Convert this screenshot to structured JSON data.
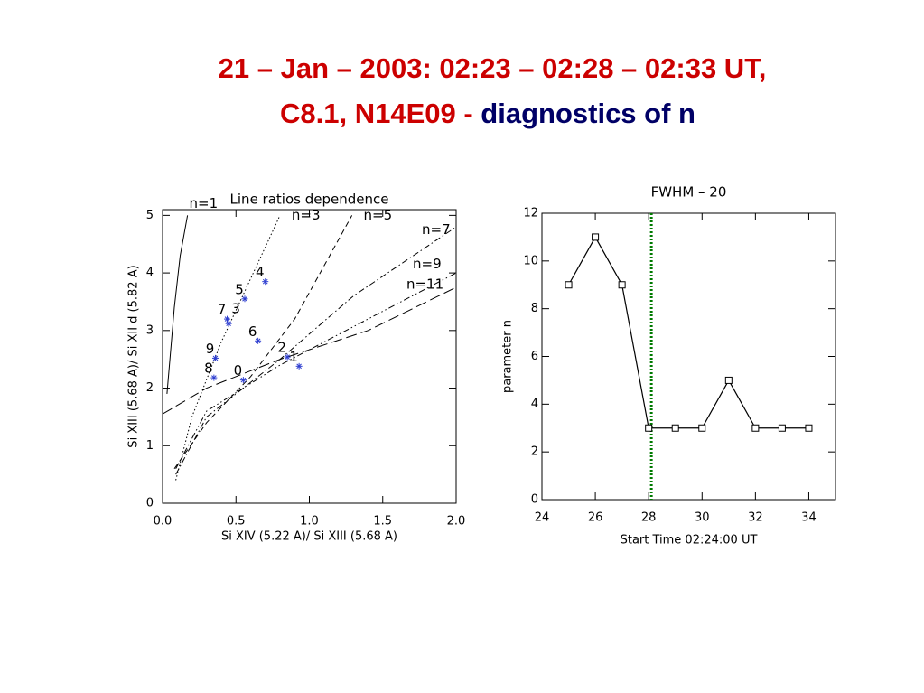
{
  "slide": {
    "title_line1": "21 – Jan – 2003: 02:23 – 02:28 – 02:33 UT,",
    "title_line2_red": "C8.1, N14E09 -",
    "title_line2_blue": "diagnostics of n"
  },
  "chart_data": [
    {
      "type": "scatter",
      "title": "Line ratios dependence",
      "xlabel": "Si XIV (5.22 A)/ Si XIII (5.68 A)",
      "ylabel": "Si XIII (5.68 A)/ Si XII d (5.82 A)",
      "xlim": [
        0,
        2
      ],
      "ylim": [
        0,
        5.1
      ],
      "xticks": [
        {
          "value": 0,
          "label": "0.0"
        },
        0.5,
        {
          "value": 1,
          "label": "1.0"
        },
        1.5,
        {
          "value": 2,
          "label": "2.0"
        }
      ],
      "yticks": [
        0,
        1,
        2,
        3,
        4,
        5
      ],
      "curves": [
        {
          "name": "n=1",
          "style": "solid",
          "x": [
            0.03,
            0.05,
            0.08,
            0.12,
            0.17
          ],
          "y": [
            1.9,
            2.5,
            3.4,
            4.3,
            5.0
          ]
        },
        {
          "name": "n=3",
          "style": "dotted",
          "x": [
            0.09,
            0.2,
            0.4,
            0.6,
            0.8
          ],
          "y": [
            0.4,
            1.5,
            2.8,
            3.9,
            5.0
          ]
        },
        {
          "name": "n=5",
          "style": "dashed",
          "x": [
            0.08,
            0.3,
            0.6,
            0.9,
            1.29
          ],
          "y": [
            0.6,
            1.4,
            2.2,
            3.2,
            5.0
          ]
        },
        {
          "name": "n=7",
          "style": "dashdot",
          "x": [
            0.09,
            0.3,
            0.8,
            1.3,
            2.0
          ],
          "y": [
            0.5,
            1.5,
            2.5,
            3.6,
            4.8
          ]
        },
        {
          "name": "n=9",
          "style": "dashdotdot",
          "x": [
            0.09,
            0.3,
            0.8,
            1.4,
            2.0
          ],
          "y": [
            0.6,
            1.6,
            2.4,
            3.2,
            4.0
          ]
        },
        {
          "name": "n=11",
          "style": "longdash",
          "x": [
            0,
            0.3,
            0.8,
            1.4,
            2.0
          ],
          "y": [
            1.55,
            2.0,
            2.5,
            3.0,
            3.75
          ]
        }
      ],
      "points": {
        "color": "#2f3fd0",
        "labels": [
          "0",
          "1",
          "2",
          "3",
          "4",
          "5",
          "6",
          "7",
          "8",
          "9"
        ],
        "x": [
          0.55,
          0.93,
          0.85,
          0.45,
          0.7,
          0.56,
          0.65,
          0.44,
          0.35,
          0.36
        ],
        "y": [
          2.14,
          2.38,
          2.54,
          3.12,
          3.85,
          3.55,
          2.82,
          3.2,
          2.18,
          2.52
        ]
      }
    },
    {
      "type": "line",
      "title": "FWHM – 20",
      "xlabel": "Start Time 02:24:00 UT",
      "ylabel": "parameter n",
      "xlim": [
        24,
        35
      ],
      "ylim": [
        0,
        12
      ],
      "xticks": [
        24,
        26,
        28,
        30,
        32,
        34
      ],
      "yticks": [
        0,
        2,
        4,
        6,
        8,
        10,
        12
      ],
      "x": [
        25,
        26,
        27,
        28,
        29,
        30,
        31,
        32,
        33,
        34
      ],
      "values": [
        9,
        11,
        9,
        3,
        3,
        3,
        5,
        3,
        3,
        3
      ],
      "color": "#000000",
      "vline": {
        "x": 28.1,
        "color": "#007a00"
      }
    }
  ]
}
